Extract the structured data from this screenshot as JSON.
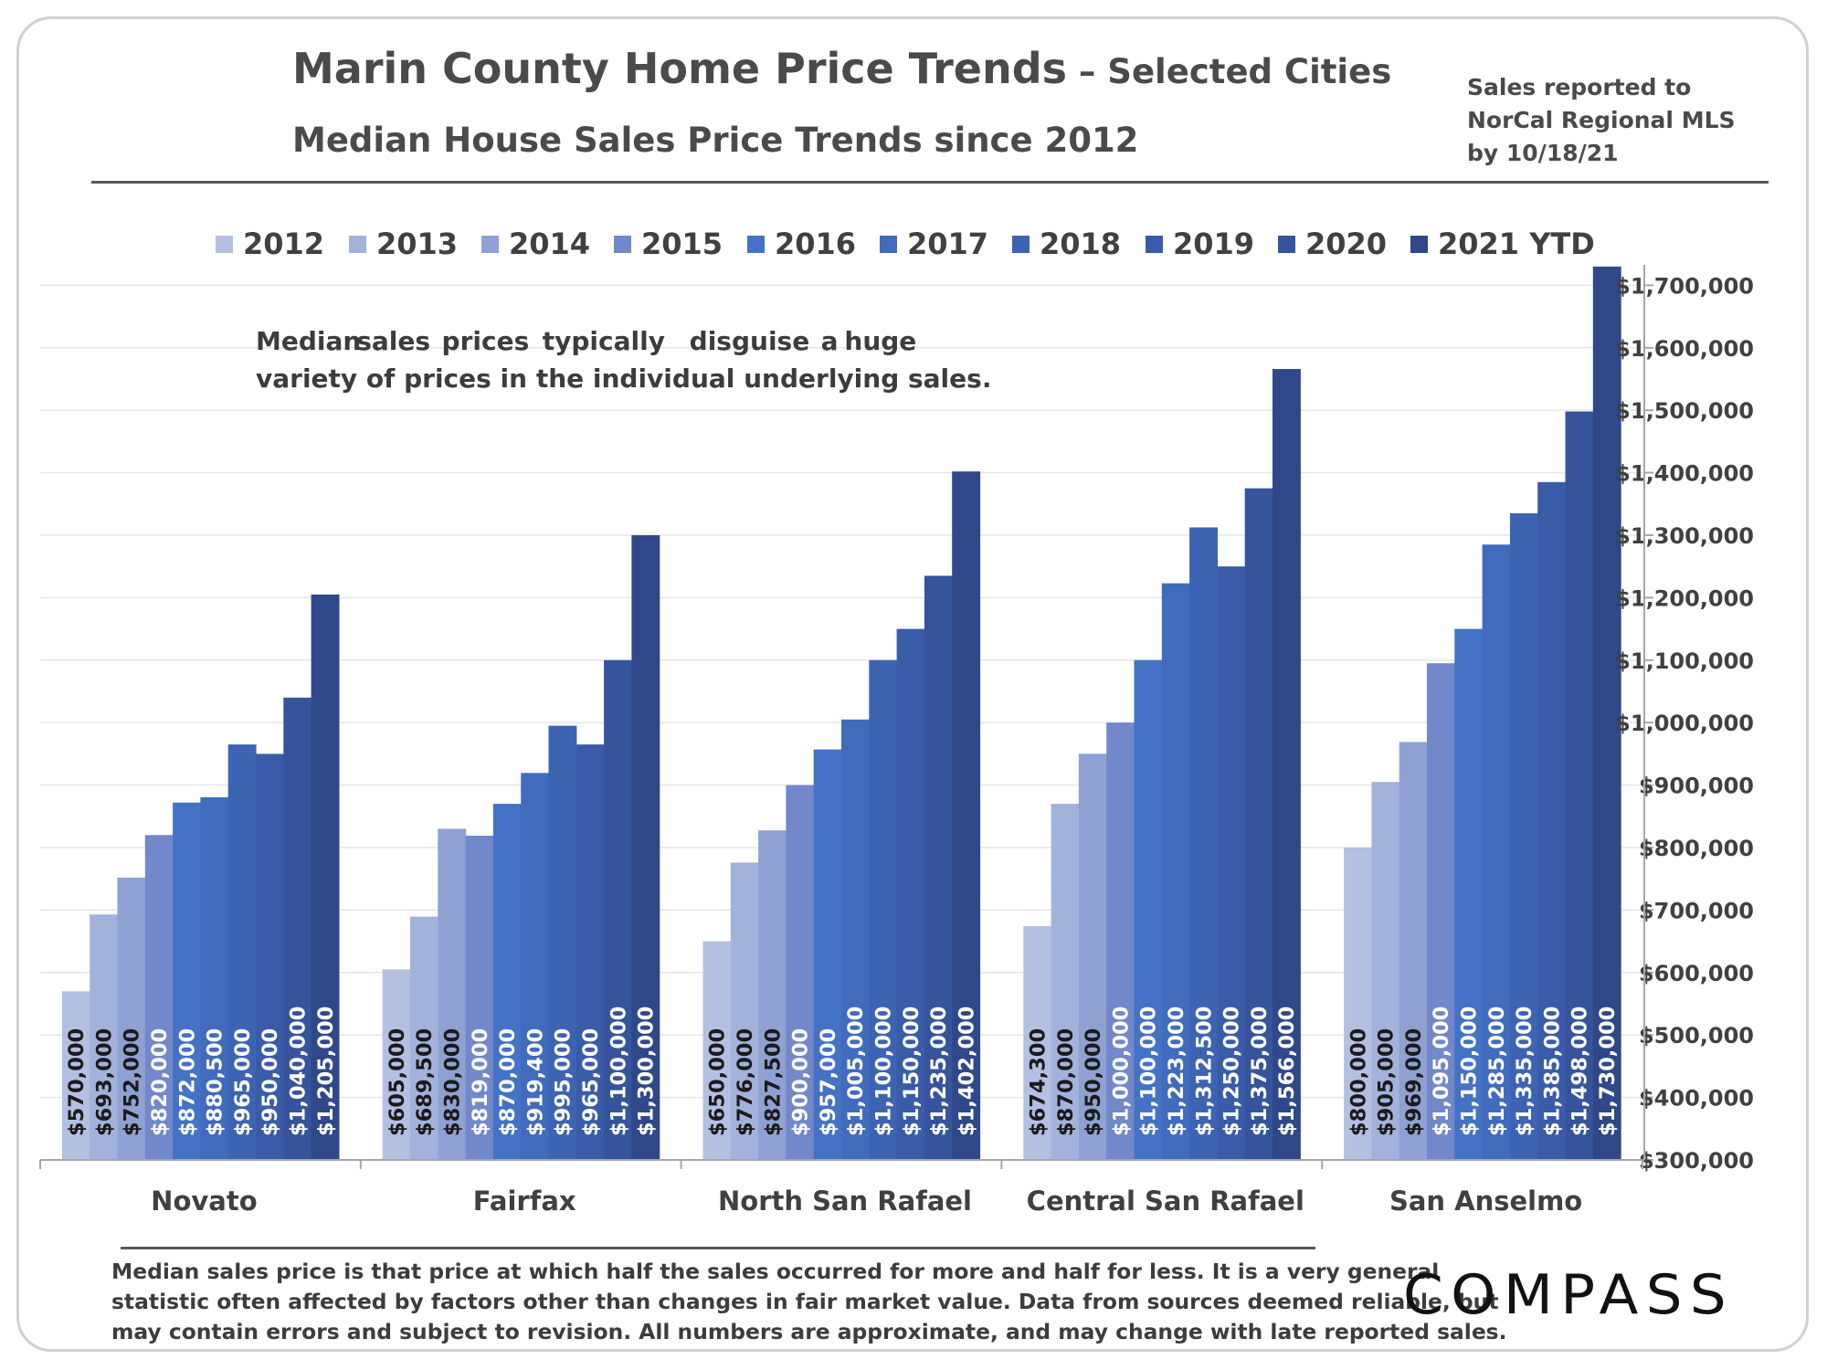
{
  "header": {
    "title_main": "Marin County Home Price Trends",
    "title_suffix": " – Selected Cities",
    "subtitle": "Median House Sales Price Trends since 2012",
    "source_lines": [
      "Sales reported to",
      "NorCal Regional MLS",
      "by 10/18/21"
    ]
  },
  "footnote_lines": [
    "Median sales price is that price at which half the sales occurred for more and half for less. It is a very general",
    "statistic often affected by factors other than changes in fair market value. Data from sources deemed reliable, but",
    "may contain errors and subject to revision. All numbers are approximate, and may change with late reported sales."
  ],
  "logo_text": "COMPASS",
  "chart_data": {
    "type": "bar",
    "categories": [
      "Novato",
      "Fairfax",
      "North San Rafael",
      "Central San Rafael",
      "San Anselmo"
    ],
    "series": [
      {
        "name": "2012",
        "color": "#b4c0e2",
        "values": [
          570000,
          605000,
          650000,
          674300,
          800000
        ],
        "labels": [
          "$570,000",
          "$605,000",
          "$650,000",
          "$674,300",
          "$800,000"
        ]
      },
      {
        "name": "2013",
        "color": "#a3b2db",
        "values": [
          693000,
          689500,
          776000,
          870000,
          905000
        ],
        "labels": [
          "$693,000",
          "$689,500",
          "$776,000",
          "$870,000",
          "$905,000"
        ]
      },
      {
        "name": "2014",
        "color": "#8ea1d2",
        "values": [
          752000,
          830000,
          827500,
          950000,
          969000
        ],
        "labels": [
          "$752,000",
          "$830,000",
          "$827,500",
          "$950,000",
          "$969,000"
        ]
      },
      {
        "name": "2015",
        "color": "#7188cb",
        "values": [
          820000,
          819000,
          900000,
          1000000,
          1095000
        ],
        "labels": [
          "$820,000",
          "$819,000",
          "$900,000",
          "$1,000,000",
          "$1,095,000"
        ]
      },
      {
        "name": "2016",
        "color": "#4472c4",
        "values": [
          872000,
          870000,
          957000,
          1100000,
          1150000
        ],
        "labels": [
          "$872,000",
          "$870,000",
          "$957,000",
          "$1,100,000",
          "$1,150,000"
        ]
      },
      {
        "name": "2017",
        "color": "#416bbd",
        "values": [
          880500,
          919400,
          1005000,
          1223000,
          1285000
        ],
        "labels": [
          "$880,500",
          "$919,400",
          "$1,005,000",
          "$1,223,000",
          "$1,285,000"
        ]
      },
      {
        "name": "2018",
        "color": "#3d64b3",
        "values": [
          965000,
          995000,
          1100000,
          1312500,
          1335000
        ],
        "labels": [
          "$965,000",
          "$995,000",
          "$1,100,000",
          "$1,312,500",
          "$1,335,000"
        ]
      },
      {
        "name": "2019",
        "color": "#3a5ca8",
        "values": [
          950000,
          965000,
          1150000,
          1250000,
          1385000
        ],
        "labels": [
          "$950,000",
          "$965,000",
          "$1,150,000",
          "$1,250,000",
          "$1,385,000"
        ]
      },
      {
        "name": "2020",
        "color": "#36549c",
        "values": [
          1040000,
          1100000,
          1235000,
          1375000,
          1498000
        ],
        "labels": [
          "$1,040,000",
          "$1,100,000",
          "$1,235,000",
          "$1,375,000",
          "$1,498,000"
        ]
      },
      {
        "name": "2021 YTD",
        "color": "#2e4889",
        "values": [
          1205000,
          1300000,
          1402000,
          1566000,
          1730000
        ],
        "labels": [
          "$1,205,000",
          "$1,300,000",
          "$1,402,000",
          "$1,566,000",
          "$1,730,000"
        ]
      }
    ],
    "ylim": [
      300000,
      1740000
    ],
    "yticks": [
      300000,
      400000,
      500000,
      600000,
      700000,
      800000,
      900000,
      1000000,
      1100000,
      1200000,
      1300000,
      1400000,
      1500000,
      1600000,
      1700000
    ],
    "ytick_labels": [
      "$300,000",
      "$400,000",
      "$500,000",
      "$600,000",
      "$700,000",
      "$800,000",
      "$900,000",
      "$1,000,000",
      "$1,100,000",
      "$1,200,000",
      "$1,300,000",
      "$1,400,000",
      "$1,500,000",
      "$1,600,000",
      "$1,700,000"
    ],
    "yaxis_side": "right",
    "grid": true,
    "legend_position": "top",
    "annotation_lines": [
      [
        "Median",
        "sales",
        "prices",
        "typically",
        "disguise",
        "a",
        "huge"
      ],
      [
        "variety of prices in the individual underlying sales."
      ]
    ]
  }
}
